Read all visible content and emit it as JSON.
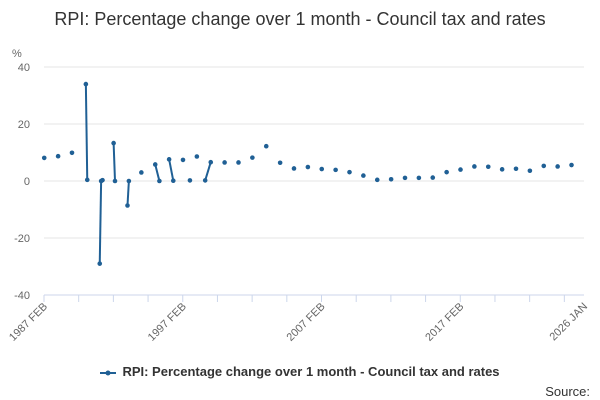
{
  "chart_data": {
    "type": "line",
    "title": "RPI: Percentage change over 1 month - Council tax and rates",
    "ylabel": "%",
    "xlabel": "",
    "ylim": [
      -40,
      40
    ],
    "xlim": [
      1987.083,
      2026.0
    ],
    "y_ticks": [
      -40,
      -20,
      0,
      20,
      40
    ],
    "x_ticks": [
      {
        "label": "1987 FEB",
        "value": 1987.083
      },
      {
        "label": "1997 FEB",
        "value": 1997.083
      },
      {
        "label": "2007 FEB",
        "value": 2007.083
      },
      {
        "label": "2017 FEB",
        "value": 2017.083
      },
      {
        "label": "2026 JAN",
        "value": 2026.0
      }
    ],
    "grid": true,
    "legend_position": "bottom",
    "series": [
      {
        "name": "RPI: Percentage change over 1 month - Council tax and rates",
        "color": "#206095",
        "points": [
          {
            "x": 1987.1,
            "y": 8.1
          },
          {
            "x": 1988.1,
            "y": 8.7
          },
          {
            "x": 1989.1,
            "y": 9.9
          },
          {
            "x": 1990.1,
            "y": 34.0
          },
          {
            "x": 1990.2,
            "y": 0.4
          },
          {
            "x": 1991.1,
            "y": -29.0
          },
          {
            "x": 1991.2,
            "y": 0.0
          },
          {
            "x": 1991.3,
            "y": 0.3
          },
          {
            "x": 1992.1,
            "y": 13.3
          },
          {
            "x": 1992.2,
            "y": 0.0
          },
          {
            "x": 1993.1,
            "y": -8.6
          },
          {
            "x": 1993.2,
            "y": 0.0
          },
          {
            "x": 1994.1,
            "y": 3.0
          },
          {
            "x": 1995.1,
            "y": 5.8
          },
          {
            "x": 1995.4,
            "y": 0.0
          },
          {
            "x": 1996.1,
            "y": 7.6
          },
          {
            "x": 1996.4,
            "y": 0.1
          },
          {
            "x": 1997.1,
            "y": 7.4
          },
          {
            "x": 1997.6,
            "y": 0.2
          },
          {
            "x": 1998.1,
            "y": 8.6
          },
          {
            "x": 1998.7,
            "y": 0.2
          },
          {
            "x": 1999.1,
            "y": 6.6
          },
          {
            "x": 2000.1,
            "y": 6.5
          },
          {
            "x": 2001.1,
            "y": 6.5
          },
          {
            "x": 2002.1,
            "y": 8.2
          },
          {
            "x": 2003.1,
            "y": 12.2
          },
          {
            "x": 2004.1,
            "y": 6.4
          },
          {
            "x": 2005.1,
            "y": 4.4
          },
          {
            "x": 2006.1,
            "y": 4.9
          },
          {
            "x": 2007.1,
            "y": 4.2
          },
          {
            "x": 2008.1,
            "y": 3.9
          },
          {
            "x": 2009.1,
            "y": 3.1
          },
          {
            "x": 2010.1,
            "y": 1.9
          },
          {
            "x": 2011.1,
            "y": 0.4
          },
          {
            "x": 2012.1,
            "y": 0.6
          },
          {
            "x": 2013.1,
            "y": 1.1
          },
          {
            "x": 2014.1,
            "y": 1.1
          },
          {
            "x": 2015.1,
            "y": 1.2
          },
          {
            "x": 2016.1,
            "y": 3.1
          },
          {
            "x": 2017.1,
            "y": 4.0
          },
          {
            "x": 2018.1,
            "y": 5.1
          },
          {
            "x": 2019.1,
            "y": 5.0
          },
          {
            "x": 2020.1,
            "y": 4.1
          },
          {
            "x": 2021.1,
            "y": 4.3
          },
          {
            "x": 2022.1,
            "y": 3.6
          },
          {
            "x": 2023.1,
            "y": 5.3
          },
          {
            "x": 2024.1,
            "y": 5.1
          },
          {
            "x": 2025.1,
            "y": 5.6
          }
        ]
      }
    ]
  },
  "colors": {
    "series": "#206095",
    "grid": "#e6e6e6",
    "axis": "#ccd6eb",
    "text": "#333333"
  },
  "source_label": "Source:"
}
